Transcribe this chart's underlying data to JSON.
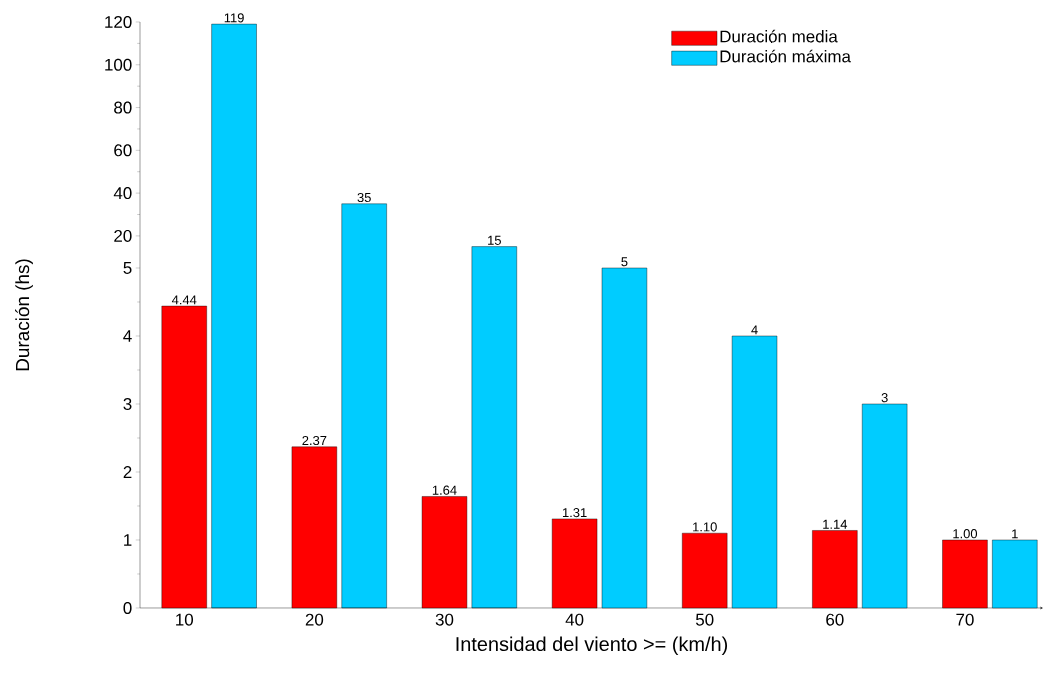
{
  "chart_data": [
    {
      "type": "bar",
      "categories": [
        "10",
        "20",
        "30",
        "40",
        "50",
        "60",
        "70"
      ],
      "series": [
        {
          "name": "Duración media",
          "color": "#ff0000",
          "values": [
            null,
            null,
            null,
            null,
            null,
            null,
            null
          ]
        },
        {
          "name": "Duración máxima",
          "color": "#00ccff",
          "values": [
            119,
            35,
            15,
            null,
            null,
            null,
            null
          ],
          "value_labels": [
            "119",
            "35",
            "15",
            null,
            null,
            null,
            null
          ]
        }
      ],
      "ylim": [
        5,
        120
      ],
      "yticks": [
        20,
        40,
        60,
        80,
        100,
        120
      ],
      "legend": "top right",
      "tick_labels": "y"
    },
    {
      "type": "bar",
      "categories": [
        "10",
        "20",
        "30",
        "40",
        "50",
        "60",
        "70"
      ],
      "xlabel": "Intensidad del viento >= (km/h)",
      "ylabel": "Duración (hs)",
      "series": [
        {
          "color": "#ff0000",
          "values": [
            4.44,
            2.37,
            1.64,
            1.31,
            1.1,
            1.14,
            1.0
          ],
          "value_labels": [
            "4.44",
            "2.37",
            "1.64",
            "1.31",
            "1.10",
            "1.14",
            "1.00"
          ]
        },
        {
          "color": "#00ccff",
          "values": [
            null,
            null,
            null,
            5,
            4,
            3,
            1
          ],
          "value_labels": [
            null,
            null,
            null,
            "5",
            "4",
            "3",
            "1"
          ]
        }
      ],
      "ylim": [
        0,
        5
      ],
      "yticks": [
        0,
        1,
        2,
        3,
        4,
        5
      ]
    }
  ]
}
